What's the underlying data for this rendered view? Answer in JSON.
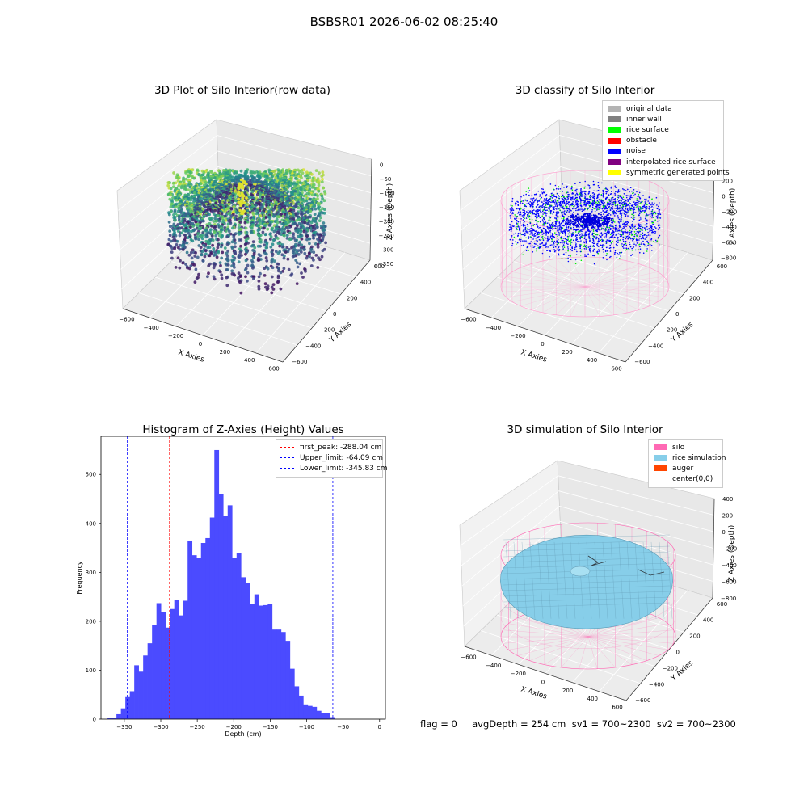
{
  "suptitle": "BSBSR01 2026-06-02 08:25:40",
  "footer": "flag = 0     avgDepth = 254 cm  sv1 = 700~2300  sv2 = 700~2300",
  "chart_data": [
    {
      "type": "scatter3d",
      "title": "3D Plot of Silo Interior(row data)",
      "xlabel": "X Axies",
      "ylabel": "Y Axies",
      "zlabel": "Z Axies (Depth)",
      "x_ticks": [
        "−600",
        "−400",
        "−200",
        "0",
        "200",
        "400",
        "600"
      ],
      "y_ticks": [
        "−600",
        "−400",
        "−200",
        "0",
        "200",
        "400",
        "600"
      ],
      "z_ticks": [
        "0",
        "−50",
        "−100",
        "−150",
        "−200",
        "−250",
        "−300",
        "−350"
      ],
      "zlim": [
        -380,
        0
      ],
      "colormap": "viridis"
    },
    {
      "type": "scatter3d",
      "title": "3D classify of Silo Interior",
      "xlabel": "X Axies",
      "ylabel": "Y Axies",
      "zlabel": "Z Axies (Depth)",
      "x_ticks": [
        "−600",
        "−400",
        "−200",
        "0",
        "200",
        "400",
        "600"
      ],
      "y_ticks": [
        "−600",
        "−400",
        "−200",
        "0",
        "200",
        "400",
        "600"
      ],
      "z_ticks": [
        "200",
        "0",
        "−200",
        "−400",
        "−600",
        "−800"
      ],
      "legend_position": "upper-right",
      "legend": [
        {
          "label": "original data",
          "color": "#b4b4b4"
        },
        {
          "label": "inner wall",
          "color": "#808080"
        },
        {
          "label": "rice surface",
          "color": "#00ff00"
        },
        {
          "label": "obstacle",
          "color": "#ff0000"
        },
        {
          "label": "noise",
          "color": "#0000ff"
        },
        {
          "label": "interpolated rice surface",
          "color": "#800080"
        },
        {
          "label": "symmetric generated points",
          "color": "#ffff00"
        }
      ]
    },
    {
      "type": "bar",
      "title": "Histogram of Z-Axies (Height) Values",
      "xlabel": "Depth (cm)",
      "ylabel": "Frequency",
      "xlim": [
        -382,
        8
      ],
      "ylim": [
        0,
        578
      ],
      "x_ticks": [
        "−350",
        "−300",
        "−250",
        "−200",
        "−150",
        "−100",
        "−50",
        "0"
      ],
      "x_tick_values": [
        -350,
        -300,
        -250,
        -200,
        -150,
        -100,
        -50,
        0
      ],
      "y_ticks": [
        "0",
        "100",
        "200",
        "300",
        "400",
        "500"
      ],
      "y_tick_values": [
        0,
        100,
        200,
        300,
        400,
        500
      ],
      "bar_color": "#4b4bff",
      "bin_start": -373,
      "bin_width": 6.1,
      "values": [
        2,
        3,
        10,
        22,
        45,
        57,
        110,
        97,
        130,
        155,
        193,
        237,
        218,
        187,
        225,
        243,
        212,
        242,
        365,
        335,
        330,
        360,
        370,
        412,
        550,
        460,
        415,
        437,
        330,
        340,
        290,
        278,
        235,
        255,
        232,
        233,
        235,
        183,
        183,
        178,
        160,
        103,
        67,
        48,
        30,
        27,
        25,
        17,
        12,
        12,
        4
      ],
      "vlines": [
        {
          "label": "first_peak: -288.04 cm",
          "value": -288.04,
          "color": "#ff0000"
        },
        {
          "label": "Upper_limit: -64.09 cm",
          "value": -64.09,
          "color": "#0000ff"
        },
        {
          "label": "Lower_limit: -345.83 cm",
          "value": -345.83,
          "color": "#0000ff"
        }
      ],
      "legend_position": "upper-right"
    },
    {
      "type": "surface3d",
      "title": "3D simulation of Silo Interior",
      "xlabel": "X Axies",
      "ylabel": "Y Axies",
      "zlabel": "Z Axies (Depth)",
      "x_ticks": [
        "−600",
        "−400",
        "−200",
        "0",
        "200",
        "400",
        "600"
      ],
      "y_ticks": [
        "−600",
        "−400",
        "−200",
        "0",
        "200",
        "400",
        "600"
      ],
      "z_ticks": [
        "400",
        "200",
        "0",
        "−200",
        "−400",
        "−600",
        "−800"
      ],
      "legend_position": "upper-right",
      "legend": [
        {
          "label": "silo",
          "color": "#ff69b4"
        },
        {
          "label": "rice simulation",
          "color": "#87cee9"
        },
        {
          "label": "auger",
          "color": "#ff4500"
        },
        {
          "label": "center(0,0)",
          "color": "#ffffff"
        }
      ]
    }
  ]
}
